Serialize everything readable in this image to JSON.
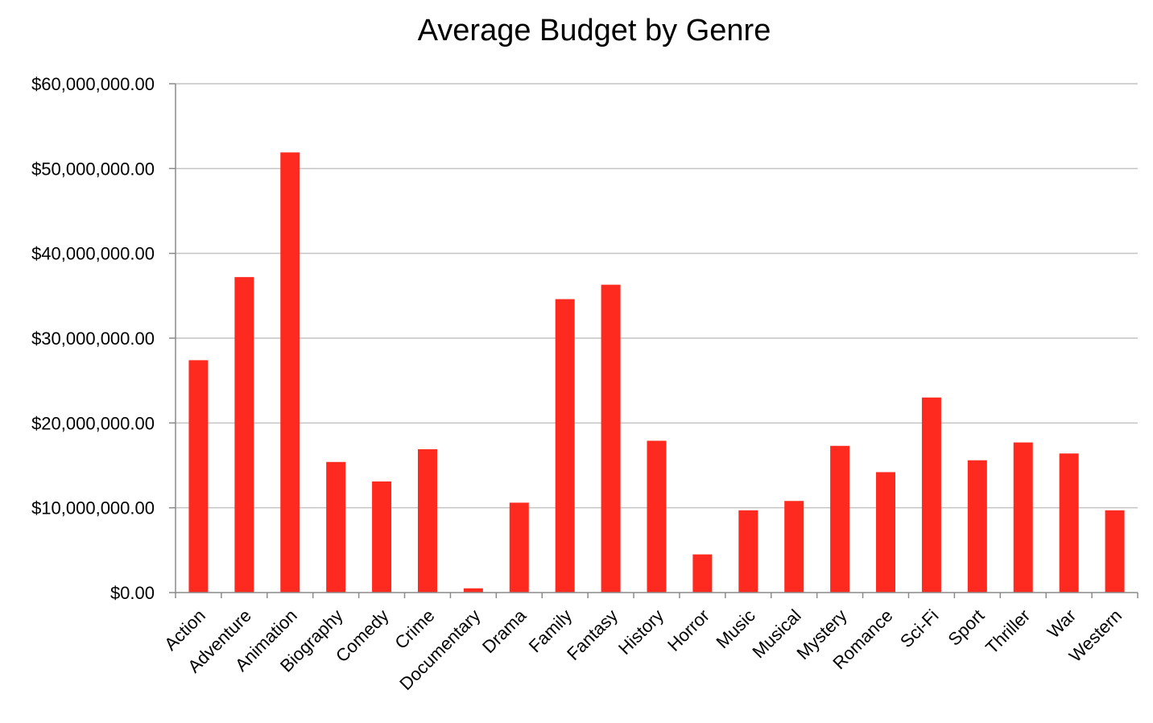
{
  "chart_data": {
    "type": "bar",
    "title": "Average Budget by Genre",
    "xlabel": "",
    "ylabel": "",
    "categories": [
      "Action",
      "Adventure",
      "Animation",
      "Biography",
      "Comedy",
      "Crime",
      "Documentary",
      "Drama",
      "Family",
      "Fantasy",
      "History",
      "Horror",
      "Music",
      "Musical",
      "Mystery",
      "Romance",
      "Sci-Fi",
      "Sport",
      "Thriller",
      "War",
      "Western"
    ],
    "values": [
      27400000,
      37200000,
      51900000,
      15400000,
      13100000,
      16900000,
      500000,
      10600000,
      34600000,
      36300000,
      17900000,
      4500000,
      9700000,
      10800000,
      17300000,
      14200000,
      23000000,
      15600000,
      17700000,
      16400000,
      9700000
    ],
    "ylim": [
      0,
      60000000
    ],
    "y_ticks": [
      0,
      10000000,
      20000000,
      30000000,
      40000000,
      50000000,
      60000000
    ],
    "y_tick_labels": [
      "$0.00",
      "$10,000,000.00",
      "$20,000,000.00",
      "$30,000,000.00",
      "$40,000,000.00",
      "$50,000,000.00",
      "$60,000,000.00"
    ],
    "grid": true,
    "legend": "none",
    "colors": {
      "bar": "#ff2a1f",
      "grid": "#c4c4c4",
      "axis": "#8a8a8a"
    }
  }
}
